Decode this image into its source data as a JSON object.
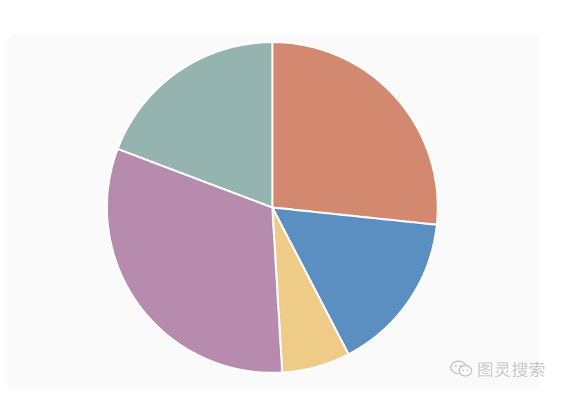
{
  "chart_data": {
    "type": "pie",
    "start_angle_deg": 0,
    "direction": "clockwise",
    "slices": [
      {
        "value": 28.0,
        "color": "#d38970"
      },
      {
        "value": 16.5,
        "color": "#5b8fc2"
      },
      {
        "value": 7.0,
        "color": "#eecb87"
      },
      {
        "value": 33.3,
        "color": "#b78bae"
      },
      {
        "value": 20.2,
        "color": "#95b4b0"
      }
    ],
    "title": "",
    "legend": "none"
  },
  "watermark": {
    "icon": "wechat-icon",
    "text": "图灵搜索"
  }
}
